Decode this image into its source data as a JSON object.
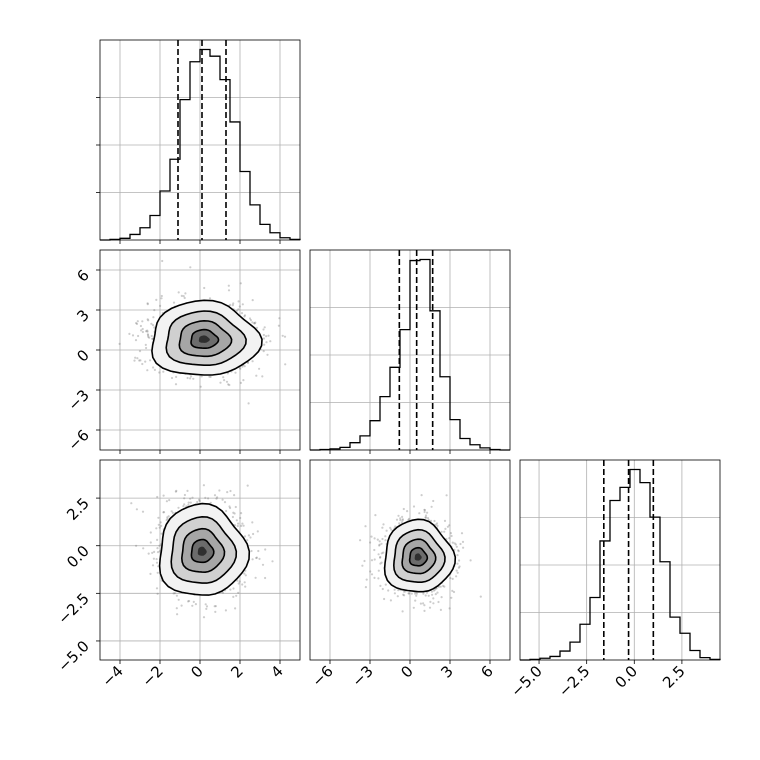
{
  "chart_data": {
    "type": "corner",
    "title": "",
    "dimensions": 3,
    "axis_ranges": [
      [
        -5.0,
        5.0
      ],
      [
        -7.5,
        7.5
      ],
      [
        -6.0,
        4.5
      ]
    ],
    "ticks": [
      {
        "values": [
          -4,
          -2,
          0,
          2,
          4
        ],
        "labels": [
          "−4",
          "−2",
          "0",
          "2",
          "4"
        ]
      },
      {
        "values": [
          -6,
          -3,
          0,
          3,
          6
        ],
        "labels": [
          "−6",
          "−3",
          "0",
          "3",
          "6"
        ]
      },
      {
        "values": [
          -5.0,
          -2.5,
          0.0,
          2.5
        ],
        "labels": [
          "−5.0",
          "−2.5",
          "0.0",
          "2.5"
        ]
      }
    ],
    "grid": true,
    "quantile_lines": [
      [
        -1.1,
        0.1,
        1.3
      ],
      [
        -0.8,
        0.5,
        1.7
      ],
      [
        -1.6,
        -0.3,
        1.0
      ]
    ],
    "marginals": [
      {
        "bin_edges": [
          -5.0,
          -4.5,
          -4.0,
          -3.5,
          -3.0,
          -2.5,
          -2.0,
          -1.5,
          -1.0,
          -0.5,
          0.0,
          0.5,
          1.0,
          1.5,
          2.0,
          2.5,
          3.0,
          3.5,
          4.0,
          4.5,
          5.0
        ],
        "counts": [
          0,
          1,
          3,
          10,
          22,
          44,
          88,
          145,
          252,
          320,
          342,
          330,
          288,
          212,
          123,
          63,
          28,
          13,
          4,
          1
        ]
      },
      {
        "bin_edges": [
          -7.5,
          -6.75,
          -6.0,
          -5.25,
          -4.5,
          -3.75,
          -3.0,
          -2.25,
          -1.5,
          -0.75,
          0.0,
          0.75,
          1.5,
          2.25,
          3.0,
          3.75,
          4.5,
          5.25,
          6.0,
          6.75,
          7.5
        ],
        "counts": [
          0,
          1,
          2,
          5,
          14,
          27,
          56,
          102,
          158,
          230,
          362,
          364,
          266,
          140,
          58,
          22,
          10,
          4,
          1,
          0
        ]
      },
      {
        "bin_edges": [
          -6.0,
          -5.475,
          -4.95,
          -4.425,
          -3.9,
          -3.375,
          -2.85,
          -2.325,
          -1.8,
          -1.275,
          -0.75,
          -0.225,
          0.3,
          0.825,
          1.35,
          1.875,
          2.4,
          2.925,
          3.45,
          3.975,
          4.5
        ],
        "counts": [
          0,
          1,
          3,
          6,
          15,
          30,
          60,
          105,
          200,
          268,
          290,
          320,
          298,
          240,
          165,
          72,
          45,
          16,
          4,
          1
        ]
      }
    ],
    "joint": [
      {
        "pair": [
          0,
          1
        ],
        "center": [
          0.2,
          0.8
        ],
        "sigma": [
          1.35,
          1.4
        ]
      },
      {
        "pair": [
          0,
          2
        ],
        "center": [
          0.1,
          -0.3
        ],
        "sigma": [
          1.1,
          1.2
        ]
      },
      {
        "pair": [
          1,
          2
        ],
        "center": [
          0.6,
          -0.6
        ],
        "sigma": [
          1.3,
          0.95
        ]
      }
    ]
  }
}
